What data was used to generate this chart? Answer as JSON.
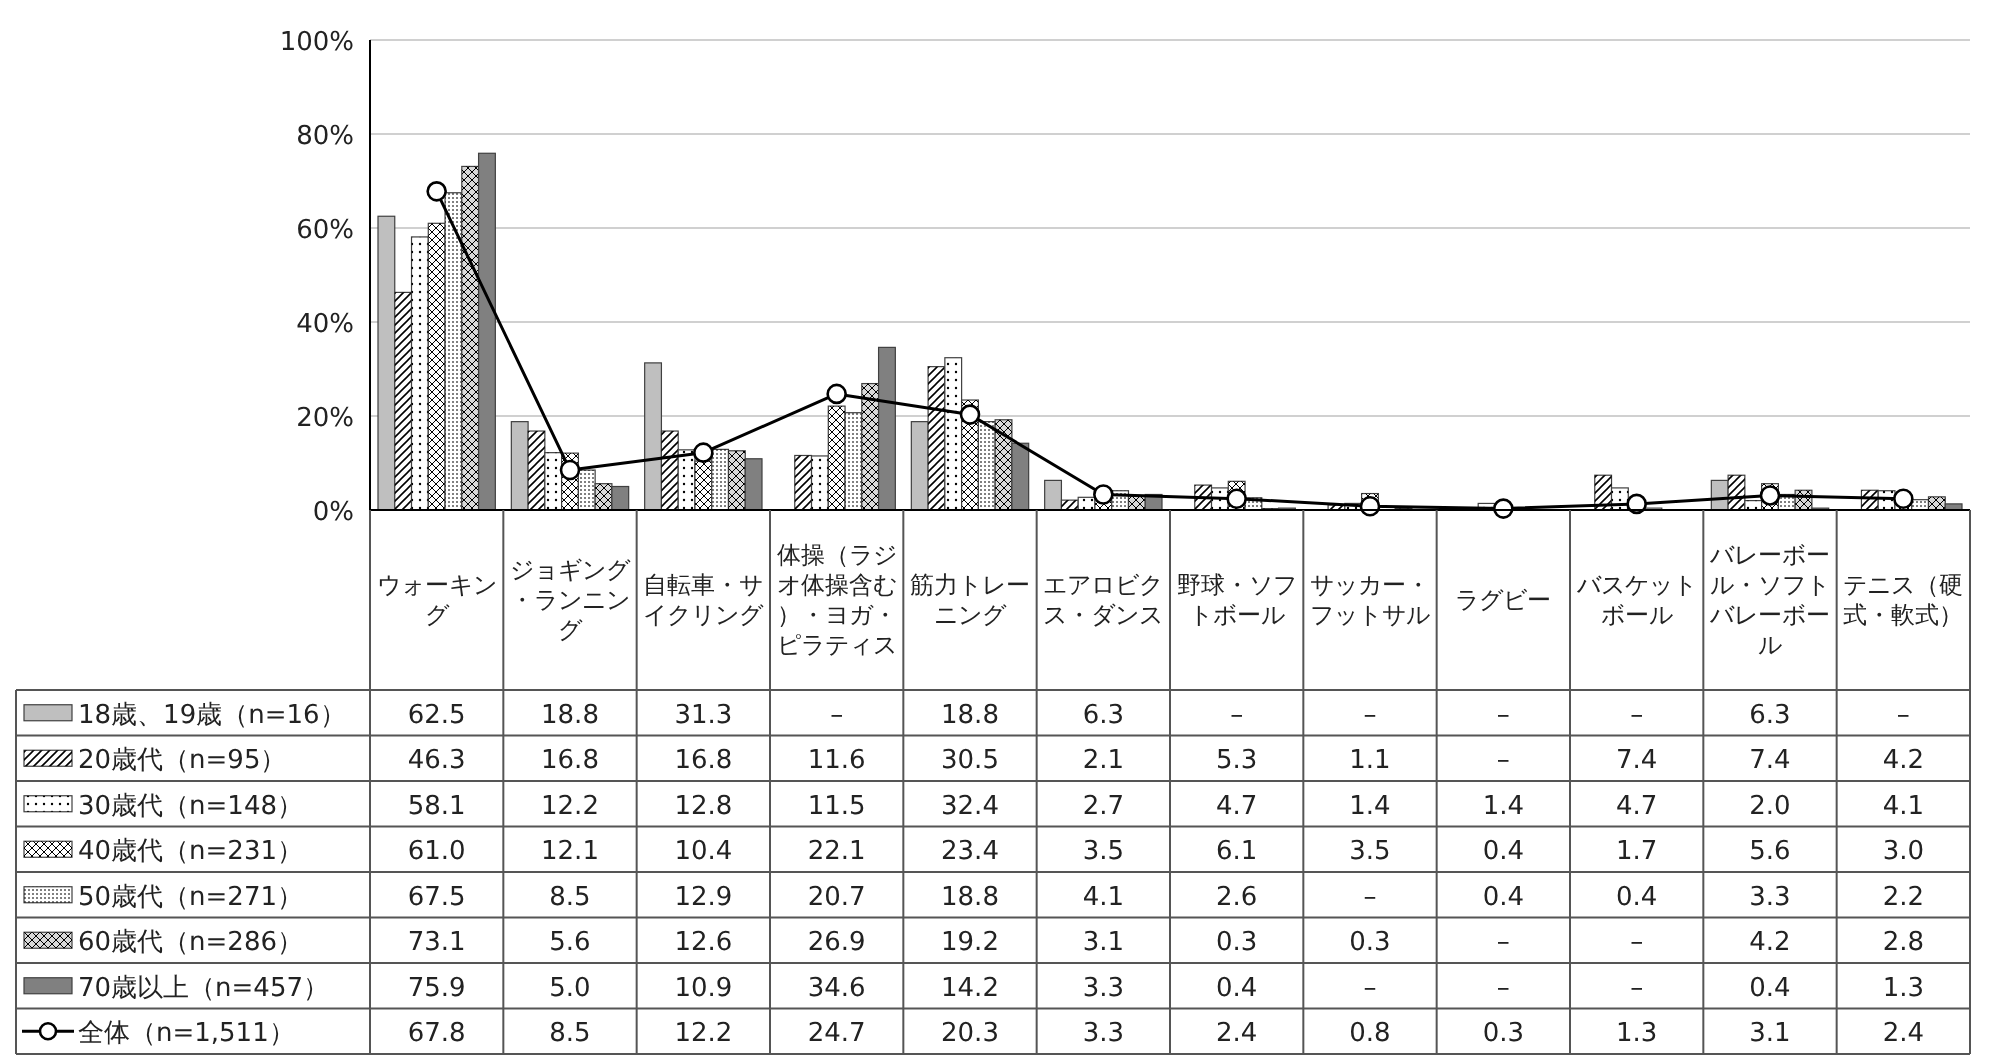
{
  "chart_data": {
    "type": "bar",
    "categories": [
      "ウォーキング",
      "ジョギング・ランニング",
      "自転車・サイクリング",
      "体操（ラジオ体操含む）・ヨガ・ピラティス",
      "筋力トレーニング",
      "エアロビクス・ダンス",
      "野球・ソフトボール",
      "サッカー・フットサル",
      "ラグビー",
      "バスケットボール",
      "バレーボール・ソフトバレーボール",
      "テニス（硬式・軟式）"
    ],
    "series": [
      {
        "name": "18歳、19歳（n=16）",
        "color": "#bfbfbf",
        "values": [
          62.5,
          18.8,
          31.3,
          null,
          18.8,
          6.3,
          null,
          null,
          null,
          null,
          6.3,
          null
        ],
        "value_labels": [
          "62.5",
          "18.8",
          "31.3",
          "–",
          "18.8",
          "6.3",
          "–",
          "–",
          "–",
          "–",
          "6.3",
          "–"
        ]
      },
      {
        "name": "20歳代（n=95）",
        "color": "#ffffff",
        "values": [
          46.3,
          16.8,
          16.8,
          11.6,
          30.5,
          2.1,
          5.3,
          1.1,
          null,
          7.4,
          7.4,
          4.2
        ],
        "value_labels": [
          "46.3",
          "16.8",
          "16.8",
          "11.6",
          "30.5",
          "2.1",
          "5.3",
          "1.1",
          "–",
          "7.4",
          "7.4",
          "4.2"
        ]
      },
      {
        "name": "30歳代（n=148）",
        "color": "#ffffff",
        "values": [
          58.1,
          12.2,
          12.8,
          11.5,
          32.4,
          2.7,
          4.7,
          1.4,
          1.4,
          4.7,
          2.0,
          4.1
        ],
        "value_labels": [
          "58.1",
          "12.2",
          "12.8",
          "11.5",
          "32.4",
          "2.7",
          "4.7",
          "1.4",
          "1.4",
          "4.7",
          "2.0",
          "4.1"
        ]
      },
      {
        "name": "40歳代（n=231）",
        "color": "#ffffff",
        "values": [
          61.0,
          12.1,
          10.4,
          22.1,
          23.4,
          3.5,
          6.1,
          3.5,
          0.4,
          1.7,
          5.6,
          3.0
        ],
        "value_labels": [
          "61.0",
          "12.1",
          "10.4",
          "22.1",
          "23.4",
          "3.5",
          "6.1",
          "3.5",
          "0.4",
          "1.7",
          "5.6",
          "3.0"
        ]
      },
      {
        "name": "50歳代（n=271）",
        "color": "#ffffff",
        "values": [
          67.5,
          8.5,
          12.9,
          20.7,
          18.8,
          4.1,
          2.6,
          null,
          0.4,
          0.4,
          3.3,
          2.2
        ],
        "value_labels": [
          "67.5",
          "8.5",
          "12.9",
          "20.7",
          "18.8",
          "4.1",
          "2.6",
          "–",
          "0.4",
          "0.4",
          "3.3",
          "2.2"
        ]
      },
      {
        "name": "60歳代（n=286）",
        "color": "#d9d9d9",
        "values": [
          73.1,
          5.6,
          12.6,
          26.9,
          19.2,
          3.1,
          0.3,
          0.3,
          null,
          null,
          4.2,
          2.8
        ],
        "value_labels": [
          "73.1",
          "5.6",
          "12.6",
          "26.9",
          "19.2",
          "3.1",
          "0.3",
          "0.3",
          "–",
          "–",
          "4.2",
          "2.8"
        ]
      },
      {
        "name": "70歳以上（n=457）",
        "color": "#808080",
        "values": [
          75.9,
          5.0,
          10.9,
          34.6,
          14.2,
          3.3,
          0.4,
          null,
          null,
          null,
          0.4,
          1.3
        ],
        "value_labels": [
          "75.9",
          "5.0",
          "10.9",
          "34.6",
          "14.2",
          "3.3",
          "0.4",
          "–",
          "–",
          "–",
          "0.4",
          "1.3"
        ]
      },
      {
        "name": "全体（n=1,511）",
        "type": "line",
        "marker": "circle",
        "color": "#000000",
        "values": [
          67.8,
          8.5,
          12.2,
          24.7,
          20.3,
          3.3,
          2.4,
          0.8,
          0.3,
          1.3,
          3.1,
          2.4
        ],
        "value_labels": [
          "67.8",
          "8.5",
          "12.2",
          "24.7",
          "20.3",
          "3.3",
          "2.4",
          "0.8",
          "0.3",
          "1.3",
          "3.1",
          "2.4"
        ]
      }
    ],
    "ylim": [
      0,
      100
    ],
    "yticks": [
      {
        "value": 0,
        "label": "0%"
      },
      {
        "value": 20,
        "label": "20%"
      },
      {
        "value": 40,
        "label": "40%"
      },
      {
        "value": 60,
        "label": "60%"
      },
      {
        "value": 80,
        "label": "80%"
      },
      {
        "value": 100,
        "label": "100%"
      }
    ],
    "grid": "y",
    "legend": "bottom"
  }
}
